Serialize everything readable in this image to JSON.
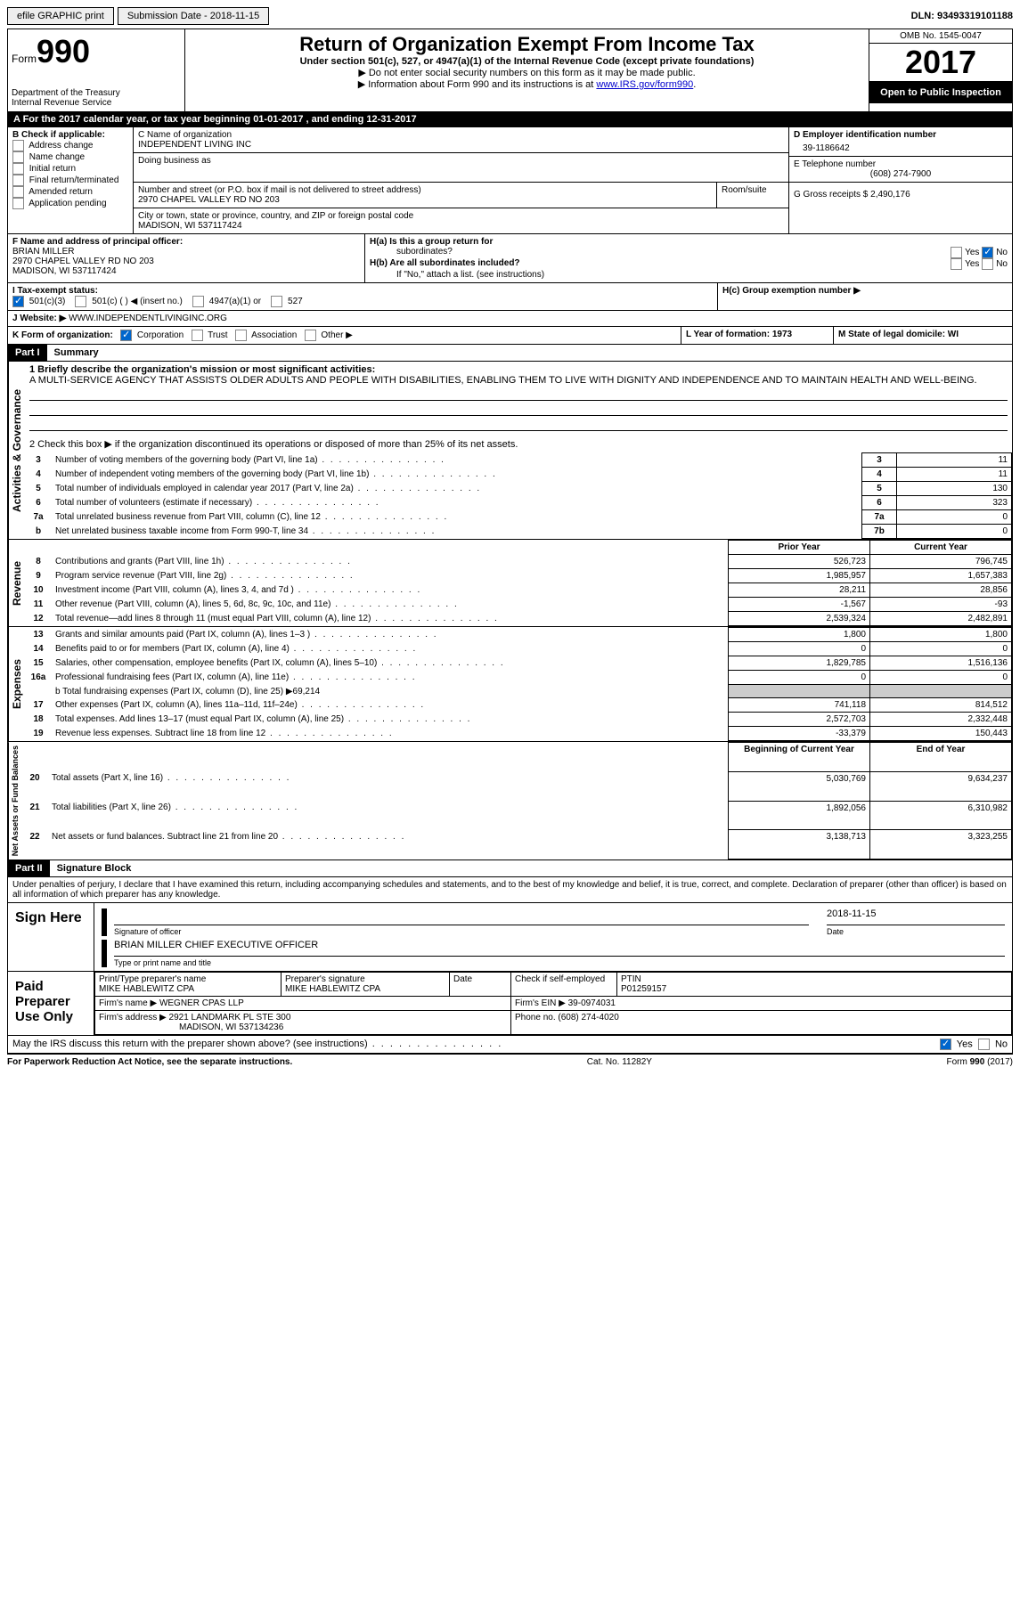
{
  "topbar": {
    "efile": "efile GRAPHIC print",
    "submission": "Submission Date - 2018-11-15",
    "dln": "DLN: 93493319101188"
  },
  "header": {
    "form_label": "Form",
    "form_number": "990",
    "dept": "Department of the Treasury",
    "irs": "Internal Revenue Service",
    "title": "Return of Organization Exempt From Income Tax",
    "subtitle": "Under section 501(c), 527, or 4947(a)(1) of the Internal Revenue Code (except private foundations)",
    "note1": "▶ Do not enter social security numbers on this form as it may be made public.",
    "note2": "▶ Information about Form 990 and its instructions is at ",
    "link": "www.IRS.gov/form990",
    "omb": "OMB No. 1545-0047",
    "year": "2017",
    "open": "Open to Public Inspection"
  },
  "section_a": "A  For the 2017 calendar year, or tax year beginning 01-01-2017   , and ending 12-31-2017",
  "box_b": {
    "label": "B Check if applicable:",
    "items": [
      "Address change",
      "Name change",
      "Initial return",
      "Final return/terminated",
      "Amended return",
      "Application pending"
    ]
  },
  "box_c": {
    "name_label": "C Name of organization",
    "name": "INDEPENDENT LIVING INC",
    "dba_label": "Doing business as",
    "street_label": "Number and street (or P.O. box if mail is not delivered to street address)",
    "room_label": "Room/suite",
    "street": "2970 CHAPEL VALLEY RD NO 203",
    "city_label": "City or town, state or province, country, and ZIP or foreign postal code",
    "city": "MADISON, WI  537117424"
  },
  "box_d": {
    "label": "D Employer identification number",
    "value": "39-1186642"
  },
  "box_e": {
    "label": "E Telephone number",
    "value": "(608) 274-7900"
  },
  "box_g": {
    "label": "G Gross receipts $ 2,490,176"
  },
  "box_f": {
    "label": "F Name and address of principal officer:",
    "name": "BRIAN MILLER",
    "addr1": "2970 CHAPEL VALLEY RD NO 203",
    "addr2": "MADISON, WI  537117424"
  },
  "box_h": {
    "ha": "H(a)  Is this a group return for",
    "ha2": "subordinates?",
    "hb": "H(b) Are all subordinates included?",
    "hb2": "If \"No,\" attach a list. (see instructions)",
    "hc": "H(c)  Group exemption number ▶",
    "yes": "Yes",
    "no": "No"
  },
  "box_i": {
    "label": "I  Tax-exempt status:",
    "c3": "501(c)(3)",
    "c": "501(c) (  ) ◀ (insert no.)",
    "a1": "4947(a)(1) or",
    "s527": "527"
  },
  "box_j": {
    "label": "J  Website: ▶",
    "value": "WWW.INDEPENDENTLIVINGINC.ORG"
  },
  "box_k": {
    "label": "K Form of organization:",
    "corp": "Corporation",
    "trust": "Trust",
    "assoc": "Association",
    "other": "Other ▶"
  },
  "box_l": {
    "label": "L Year of formation: 1973"
  },
  "box_m": {
    "label": "M State of legal domicile: WI"
  },
  "part1": {
    "header": "Part I",
    "title": "Summary",
    "line1_label": "1  Briefly describe the organization's mission or most significant activities:",
    "mission": "A MULTI-SERVICE AGENCY THAT ASSISTS OLDER ADULTS AND PEOPLE WITH DISABILITIES, ENABLING THEM TO LIVE WITH DIGNITY AND INDEPENDENCE AND TO MAINTAIN HEALTH AND WELL-BEING.",
    "line2": "2   Check this box ▶       if the organization discontinued its operations or disposed of more than 25% of its net assets.",
    "vlabel_ag": "Activities & Governance",
    "vlabel_rev": "Revenue",
    "vlabel_exp": "Expenses",
    "vlabel_net": "Net Assets or Fund Balances",
    "prior_year": "Prior Year",
    "current_year": "Current Year",
    "beg_year": "Beginning of Current Year",
    "end_year": "End of Year",
    "gov_lines": [
      {
        "n": "3",
        "label": "Number of voting members of the governing body (Part VI, line 1a)",
        "box": "3",
        "val": "11"
      },
      {
        "n": "4",
        "label": "Number of independent voting members of the governing body (Part VI, line 1b)",
        "box": "4",
        "val": "11"
      },
      {
        "n": "5",
        "label": "Total number of individuals employed in calendar year 2017 (Part V, line 2a)",
        "box": "5",
        "val": "130"
      },
      {
        "n": "6",
        "label": "Total number of volunteers (estimate if necessary)",
        "box": "6",
        "val": "323"
      },
      {
        "n": "7a",
        "label": "Total unrelated business revenue from Part VIII, column (C), line 12",
        "box": "7a",
        "val": "0"
      },
      {
        "n": "b",
        "label": "Net unrelated business taxable income from Form 990-T, line 34",
        "box": "7b",
        "val": "0"
      }
    ],
    "rev_lines": [
      {
        "n": "8",
        "label": "Contributions and grants (Part VIII, line 1h)",
        "py": "526,723",
        "cy": "796,745"
      },
      {
        "n": "9",
        "label": "Program service revenue (Part VIII, line 2g)",
        "py": "1,985,957",
        "cy": "1,657,383"
      },
      {
        "n": "10",
        "label": "Investment income (Part VIII, column (A), lines 3, 4, and 7d )",
        "py": "28,211",
        "cy": "28,856"
      },
      {
        "n": "11",
        "label": "Other revenue (Part VIII, column (A), lines 5, 6d, 8c, 9c, 10c, and 11e)",
        "py": "-1,567",
        "cy": "-93"
      },
      {
        "n": "12",
        "label": "Total revenue—add lines 8 through 11 (must equal Part VIII, column (A), line 12)",
        "py": "2,539,324",
        "cy": "2,482,891"
      }
    ],
    "exp_lines": [
      {
        "n": "13",
        "label": "Grants and similar amounts paid (Part IX, column (A), lines 1–3 )",
        "py": "1,800",
        "cy": "1,800"
      },
      {
        "n": "14",
        "label": "Benefits paid to or for members (Part IX, column (A), line 4)",
        "py": "0",
        "cy": "0"
      },
      {
        "n": "15",
        "label": "Salaries, other compensation, employee benefits (Part IX, column (A), lines 5–10)",
        "py": "1,829,785",
        "cy": "1,516,136"
      },
      {
        "n": "16a",
        "label": "Professional fundraising fees (Part IX, column (A), line 11e)",
        "py": "0",
        "cy": "0"
      }
    ],
    "line16b": "b  Total fundraising expenses (Part IX, column (D), line 25) ▶69,214",
    "exp_lines2": [
      {
        "n": "17",
        "label": "Other expenses (Part IX, column (A), lines 11a–11d, 11f–24e)",
        "py": "741,118",
        "cy": "814,512"
      },
      {
        "n": "18",
        "label": "Total expenses. Add lines 13–17 (must equal Part IX, column (A), line 25)",
        "py": "2,572,703",
        "cy": "2,332,448"
      },
      {
        "n": "19",
        "label": "Revenue less expenses. Subtract line 18 from line 12",
        "py": "-33,379",
        "cy": "150,443"
      }
    ],
    "net_lines": [
      {
        "n": "20",
        "label": "Total assets (Part X, line 16)",
        "py": "5,030,769",
        "cy": "9,634,237"
      },
      {
        "n": "21",
        "label": "Total liabilities (Part X, line 26)",
        "py": "1,892,056",
        "cy": "6,310,982"
      },
      {
        "n": "22",
        "label": "Net assets or fund balances. Subtract line 21 from line 20",
        "py": "3,138,713",
        "cy": "3,323,255"
      }
    ]
  },
  "part2": {
    "header": "Part II",
    "title": "Signature Block",
    "penalty": "Under penalties of perjury, I declare that I have examined this return, including accompanying schedules and statements, and to the best of my knowledge and belief, it is true, correct, and complete. Declaration of preparer (other than officer) is based on all information of which preparer has any knowledge.",
    "sign_here": "Sign Here",
    "sig_officer": "Signature of officer",
    "date_label": "Date",
    "date": "2018-11-15",
    "officer_name": "BRIAN MILLER  CHIEF EXECUTIVE OFFICER",
    "type_name": "Type or print name and title",
    "paid": "Paid Preparer Use Only",
    "prep_name_label": "Print/Type preparer's name",
    "prep_name": "MIKE HABLEWITZ CPA",
    "prep_sig_label": "Preparer's signature",
    "prep_sig": "MIKE HABLEWITZ CPA",
    "check_self": "Check         if self-employed",
    "ptin_label": "PTIN",
    "ptin": "P01259157",
    "firm_name_label": "Firm's name     ▶",
    "firm_name": "WEGNER CPAS LLP",
    "firm_ein_label": "Firm's EIN ▶",
    "firm_ein": "39-0974031",
    "firm_addr_label": "Firm's address ▶",
    "firm_addr": "2921 LANDMARK PL STE 300",
    "firm_city": "MADISON, WI  537134236",
    "phone_label": "Phone no. (608) 274-4020",
    "discuss": "May the IRS discuss this return with the preparer shown above? (see instructions)",
    "yes": "Yes",
    "no": "No"
  },
  "footer": {
    "left": "For Paperwork Reduction Act Notice, see the separate instructions.",
    "center": "Cat. No. 11282Y",
    "right": "Form 990 (2017)"
  }
}
